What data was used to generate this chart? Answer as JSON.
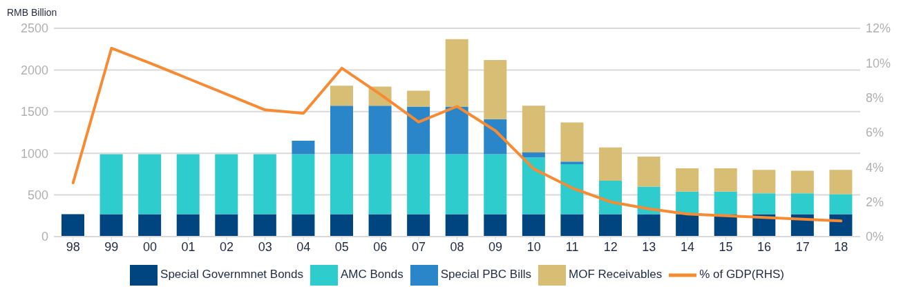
{
  "chart_data": {
    "type": "bar",
    "ylabel": "RMB Billion",
    "stacked": true,
    "grid": "y",
    "legend": "bottom",
    "categories": [
      "98",
      "99",
      "00",
      "01",
      "02",
      "03",
      "04",
      "05",
      "06",
      "07",
      "08",
      "09",
      "10",
      "11",
      "12",
      "13",
      "14",
      "15",
      "16",
      "17",
      "18"
    ],
    "ylim": [
      0,
      2500
    ],
    "yticks": [
      0,
      500,
      1000,
      1500,
      2000,
      2500
    ],
    "y2lim": [
      0,
      12
    ],
    "y2ticks": [
      {
        "value": 0,
        "label": "0%"
      },
      {
        "value": 2,
        "label": "2%"
      },
      {
        "value": 4,
        "label": "4%"
      },
      {
        "value": 6,
        "label": "6%"
      },
      {
        "value": 8,
        "label": "8%"
      },
      {
        "value": 10,
        "label": "10%"
      },
      {
        "value": 12,
        "label": "12%"
      }
    ],
    "series": [
      {
        "name": "Special Governmnet Bonds",
        "color": "#00457f",
        "values": [
          270,
          270,
          270,
          270,
          270,
          270,
          270,
          270,
          270,
          270,
          270,
          270,
          270,
          270,
          270,
          270,
          270,
          270,
          270,
          270,
          270
        ]
      },
      {
        "name": "AMC Bonds",
        "color": "#2ecccc",
        "values": [
          null,
          720,
          720,
          720,
          720,
          720,
          720,
          720,
          720,
          720,
          720,
          720,
          680,
          600,
          400,
          330,
          270,
          270,
          250,
          250,
          240
        ]
      },
      {
        "name": "Special PBC Bills",
        "color": "#2a86c9",
        "values": [
          null,
          null,
          null,
          null,
          null,
          null,
          160,
          580,
          580,
          570,
          570,
          420,
          60,
          30,
          null,
          null,
          null,
          null,
          null,
          null,
          null
        ]
      },
      {
        "name": "MOF Receivables",
        "color": "#d8bd75",
        "values": [
          null,
          null,
          null,
          null,
          null,
          null,
          null,
          240,
          230,
          190,
          810,
          710,
          560,
          470,
          400,
          360,
          280,
          280,
          280,
          270,
          290
        ]
      },
      {
        "name": "% of GDP(RHS)",
        "type": "line",
        "axis": "y2",
        "color": "#f68b33",
        "values": [
          3.1,
          10.85,
          10.0,
          9.1,
          8.2,
          7.3,
          7.1,
          9.7,
          8.2,
          6.6,
          7.5,
          6.1,
          3.9,
          2.8,
          2.0,
          1.6,
          1.3,
          1.2,
          1.1,
          1.0,
          0.9
        ]
      }
    ]
  }
}
